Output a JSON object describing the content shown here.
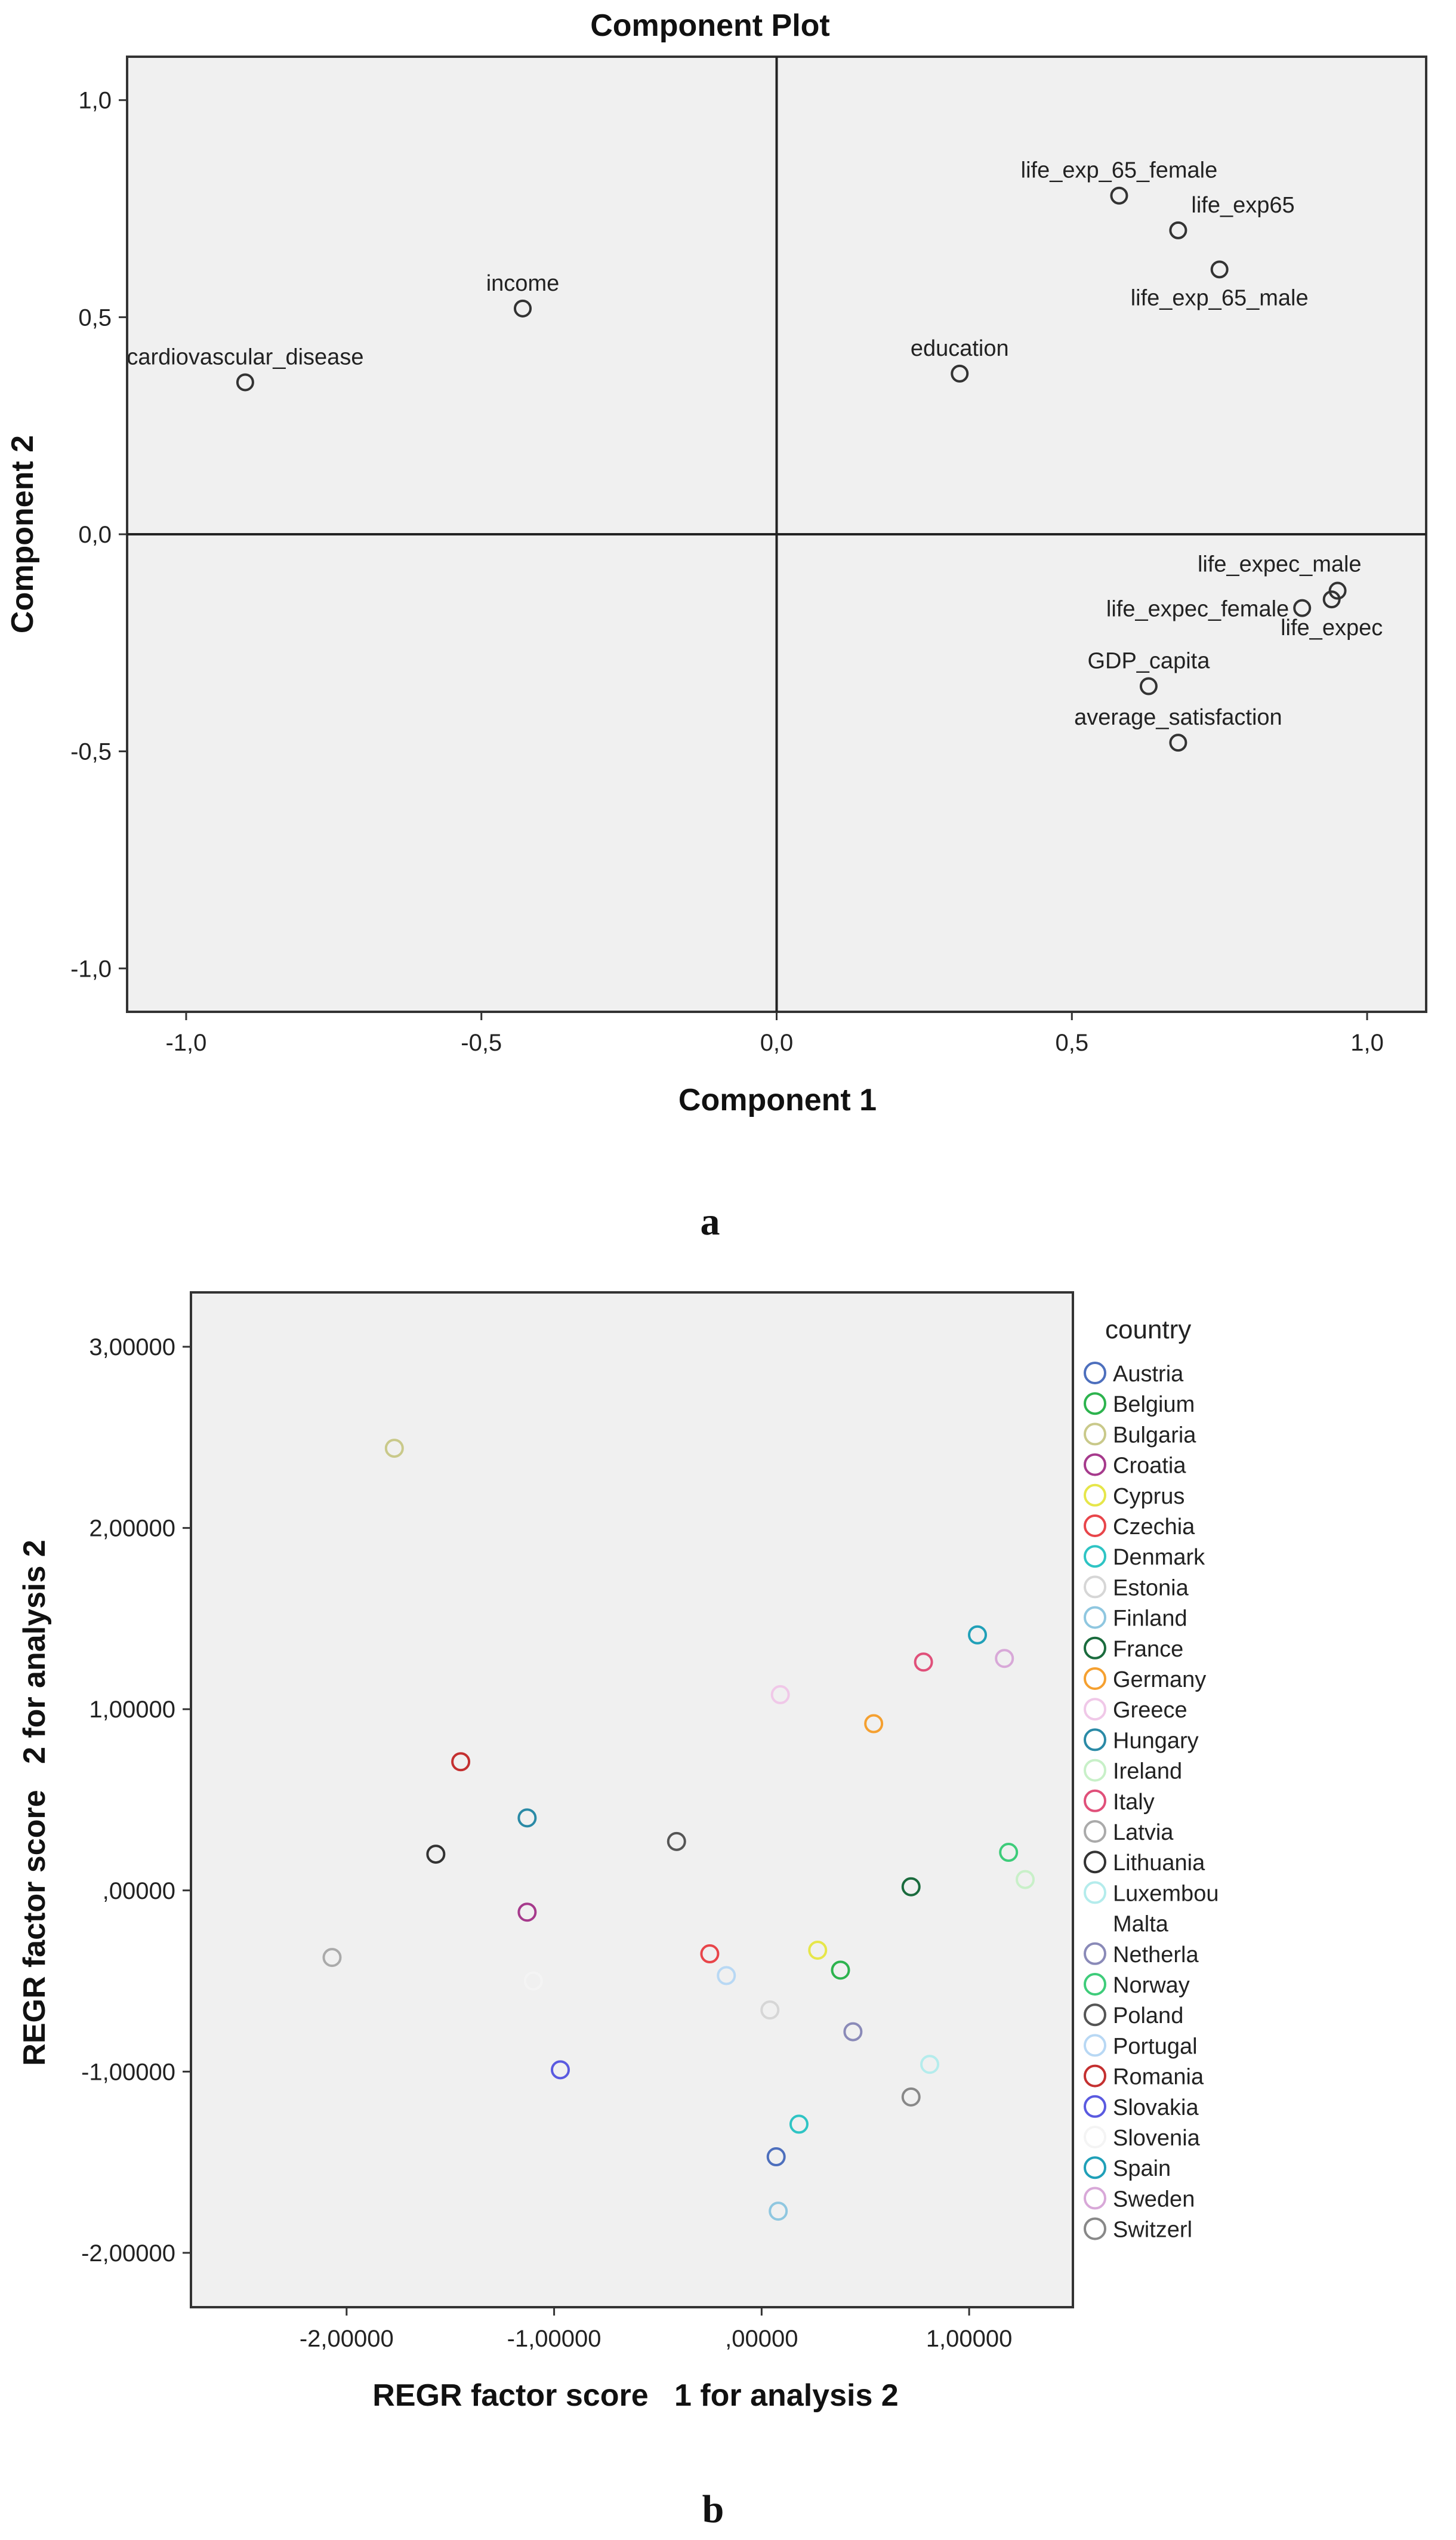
{
  "panel_a": {
    "letter": "a",
    "chart_data": {
      "type": "scatter",
      "title": "Component Plot",
      "xlabel": "Component 1",
      "ylabel": "Component 2",
      "xlim": [
        -1.1,
        1.1
      ],
      "ylim": [
        -1.1,
        1.1
      ],
      "x_ticks": [
        -1.0,
        -0.5,
        0.0,
        0.5,
        1.0
      ],
      "y_ticks": [
        -1.0,
        -0.5,
        0.0,
        0.5,
        1.0
      ],
      "x_tick_labels": [
        "-1,0",
        "-0,5",
        "0,0",
        "0,5",
        "1,0"
      ],
      "y_tick_labels": [
        "-1,0",
        "-0,5",
        "0,0",
        "0,5",
        "1,0"
      ],
      "grid": false,
      "reference_lines": {
        "x": 0,
        "y": 0
      },
      "background": "#f0f0f0",
      "marker_color": "#333333",
      "points": [
        {
          "label": "cardiovascular_disease",
          "x": -0.9,
          "y": 0.35,
          "label_pos": "above"
        },
        {
          "label": "income",
          "x": -0.43,
          "y": 0.52,
          "label_pos": "above"
        },
        {
          "label": "education",
          "x": 0.31,
          "y": 0.37,
          "label_pos": "above"
        },
        {
          "label": "life_exp_65_female",
          "x": 0.58,
          "y": 0.78,
          "label_pos": "above"
        },
        {
          "label": "life_exp65",
          "x": 0.68,
          "y": 0.7,
          "label_pos": "above-right"
        },
        {
          "label": "life_exp_65_male",
          "x": 0.75,
          "y": 0.61,
          "label_pos": "below"
        },
        {
          "label": "life_expec_male",
          "x": 0.95,
          "y": -0.13,
          "label_pos": "above-left"
        },
        {
          "label": "life_expec",
          "x": 0.94,
          "y": -0.15,
          "label_pos": "below"
        },
        {
          "label": "life_expec_female",
          "x": 0.89,
          "y": -0.17,
          "label_pos": "left"
        },
        {
          "label": "GDP_capita",
          "x": 0.63,
          "y": -0.35,
          "label_pos": "above"
        },
        {
          "label": "average_satisfaction",
          "x": 0.68,
          "y": -0.48,
          "label_pos": "above"
        }
      ]
    }
  },
  "panel_b": {
    "letter": "b",
    "chart_data": {
      "type": "scatter",
      "title": "",
      "xlabel": "REGR factor score   1 for analysis 2",
      "ylabel": "REGR factor score   2 for analysis 2",
      "xlim": [
        -2.75,
        1.5
      ],
      "ylim": [
        -2.3,
        3.3
      ],
      "x_ticks": [
        -2,
        -1,
        0,
        1
      ],
      "y_ticks": [
        -2,
        -1,
        0,
        1,
        2,
        3
      ],
      "x_tick_labels": [
        "-2,00000",
        "-1,00000",
        ",00000",
        "1,00000"
      ],
      "y_tick_labels": [
        "-2,00000",
        "-1,00000",
        ",00000",
        "1,00000",
        "2,00000",
        "3,00000"
      ],
      "grid": false,
      "background": "#f0f0f0",
      "legend_title": "country",
      "legend_position": "right",
      "series": [
        {
          "name": "Austria",
          "color": "#4d6fbd",
          "x": 0.07,
          "y": -1.47
        },
        {
          "name": "Belgium",
          "color": "#2db34e",
          "x": 0.38,
          "y": -0.44
        },
        {
          "name": "Bulgaria",
          "color": "#c9c98a",
          "x": -1.77,
          "y": 2.44
        },
        {
          "name": "Croatia",
          "color": "#a63a8c",
          "x": -1.13,
          "y": -0.12
        },
        {
          "name": "Cyprus",
          "color": "#e6e64a",
          "x": 0.27,
          "y": -0.33
        },
        {
          "name": "Czechia",
          "color": "#e8454a",
          "x": -0.25,
          "y": -0.35
        },
        {
          "name": "Denmark",
          "color": "#2ec4c4",
          "x": 0.18,
          "y": -1.29
        },
        {
          "name": "Estonia",
          "color": "#d6d6d6",
          "x": 0.04,
          "y": -0.66
        },
        {
          "name": "Finland",
          "color": "#8fc7e0",
          "x": 0.08,
          "y": -1.77
        },
        {
          "name": "France",
          "color": "#1a6b3d",
          "x": 0.72,
          "y": 0.02
        },
        {
          "name": "Germany",
          "color": "#f5a030",
          "x": 0.54,
          "y": 0.92
        },
        {
          "name": "Greece",
          "color": "#f0c8e8",
          "x": 0.09,
          "y": 1.08
        },
        {
          "name": "Hungary",
          "color": "#2a8aa6",
          "x": -1.13,
          "y": 0.4
        },
        {
          "name": "Ireland",
          "color": "#c8f0c8",
          "x": 1.27,
          "y": 0.06
        },
        {
          "name": "Italy",
          "color": "#e0507a",
          "x": 0.78,
          "y": 1.26
        },
        {
          "name": "Latvia",
          "color": "#aaaaaa",
          "x": -2.07,
          "y": -0.37
        },
        {
          "name": "Lithuania",
          "color": "#333333",
          "x": -1.57,
          "y": 0.2
        },
        {
          "name": "Luxembou",
          "color": "#b4ecec",
          "x": 0.81,
          "y": -0.96
        },
        {
          "name": "Malta",
          "color": "#ffffff",
          "x": null,
          "y": null
        },
        {
          "name": "Netherla",
          "color": "#8a8ab8",
          "x": 0.44,
          "y": -0.78
        },
        {
          "name": "Norway",
          "color": "#3ecc7a",
          "x": 1.19,
          "y": 0.21
        },
        {
          "name": "Poland",
          "color": "#555555",
          "x": -0.41,
          "y": 0.27
        },
        {
          "name": "Portugal",
          "color": "#b8d8f4",
          "x": -0.17,
          "y": -0.47
        },
        {
          "name": "Romania",
          "color": "#c43030",
          "x": -1.45,
          "y": 0.71
        },
        {
          "name": "Slovakia",
          "color": "#5a5ae0",
          "x": -0.97,
          "y": -0.99
        },
        {
          "name": "Slovenia",
          "color": "#f4f4f4",
          "x": -1.1,
          "y": -0.5
        },
        {
          "name": "Spain",
          "color": "#20a0b8",
          "x": 1.04,
          "y": 1.41
        },
        {
          "name": "Sweden",
          "color": "#d8a8d8",
          "x": 1.17,
          "y": 1.28
        },
        {
          "name": "Switzerl",
          "color": "#888888",
          "x": 0.72,
          "y": -1.14
        }
      ]
    }
  }
}
